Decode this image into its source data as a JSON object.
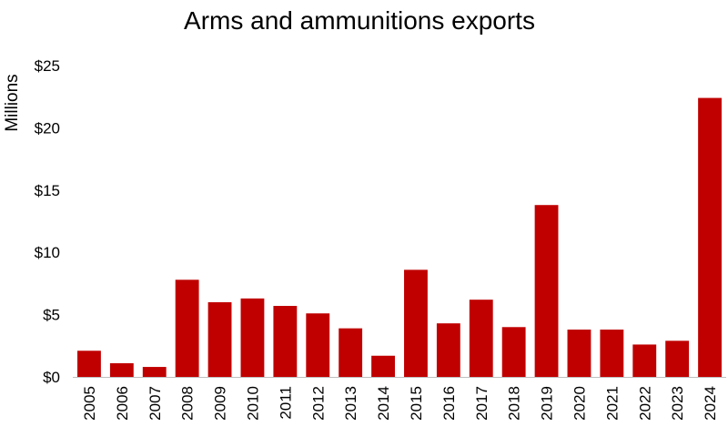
{
  "chart_data": {
    "type": "bar",
    "title": "Arms and ammunitions exports",
    "xlabel": "",
    "ylabel": "Millions",
    "categories": [
      "2005",
      "2006",
      "2007",
      "2008",
      "2009",
      "2010",
      "2011",
      "2012",
      "2013",
      "2014",
      "2015",
      "2016",
      "2017",
      "2018",
      "2019",
      "2020",
      "2021",
      "2022",
      "2023",
      "2024"
    ],
    "values": [
      2.1,
      1.1,
      0.8,
      7.8,
      6.0,
      6.3,
      5.7,
      5.1,
      3.9,
      1.7,
      8.6,
      4.3,
      6.2,
      4.0,
      13.8,
      3.8,
      3.8,
      2.6,
      2.9,
      22.4
    ],
    "ylim": [
      0,
      25
    ],
    "yticks": [
      0,
      5,
      10,
      15,
      20,
      25
    ],
    "ytick_labels": [
      "$0",
      "$5",
      "$10",
      "$15",
      "$20",
      "$25"
    ],
    "grid": false,
    "legend": "none",
    "bar_color": "#C00000"
  }
}
